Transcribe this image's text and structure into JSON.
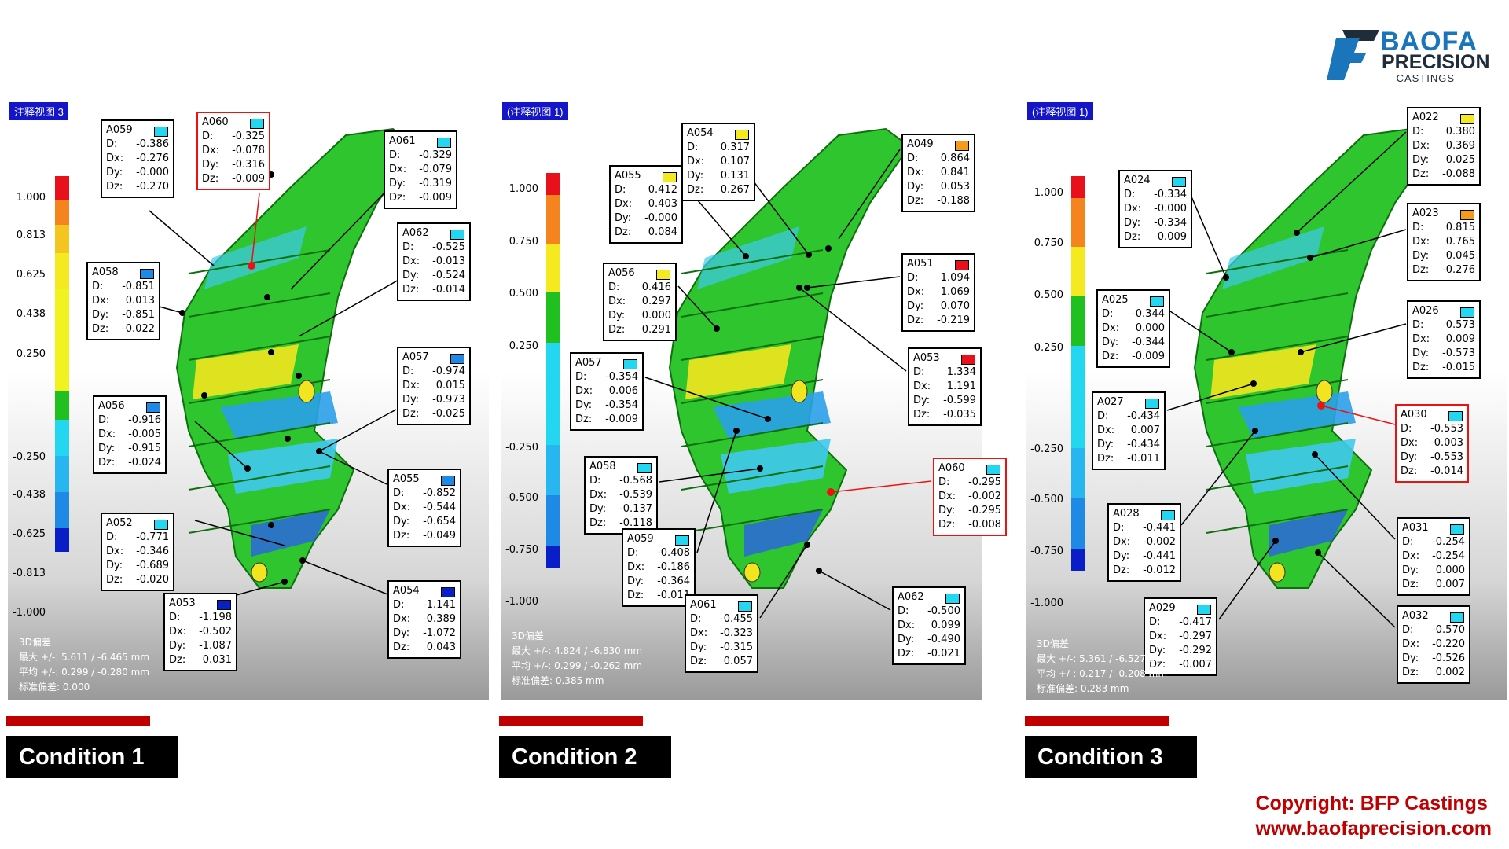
{
  "brand": {
    "name_line1": "BAOFA",
    "name_line2": "PRECISION",
    "name_line3": "CASTINGS",
    "colors": {
      "blue": "#1b75bb",
      "dark": "#1f2c3a"
    }
  },
  "copyright": {
    "line1": "Copyright: BFP Castings",
    "line2": "www.baofaprecision.com",
    "color": "#c00000"
  },
  "panels": [
    {
      "title": "注释视图 3",
      "condition_label": "Condition 1",
      "scale_labels": [
        "1.000",
        "0.813",
        "0.625",
        "0.438",
        "0.250",
        "-0.250",
        "-0.438",
        "-0.625",
        "-0.813",
        "-1.000"
      ],
      "stats": [
        "3D偏差",
        "最大 +/-: 5.611 / -6.465 mm",
        "平均 +/-: 0.299 / -0.280 mm",
        "标准偏差: 0.000"
      ],
      "annotations": [
        {
          "id": "A059",
          "D": "-0.386",
          "Dx": "-0.276",
          "Dy": "-0.000",
          "Dz": "-0.270",
          "swatch": "#23d7f0"
        },
        {
          "id": "A060",
          "D": "-0.325",
          "Dx": "-0.078",
          "Dy": "-0.316",
          "Dz": "-0.009",
          "swatch": "#23d7f0"
        },
        {
          "id": "A061",
          "D": "-0.329",
          "Dx": "-0.079",
          "Dy": "-0.319",
          "Dz": "-0.009",
          "swatch": "#23d7f0"
        },
        {
          "id": "A062",
          "D": "-0.525",
          "Dx": "-0.013",
          "Dy": "-0.524",
          "Dz": "-0.014",
          "swatch": "#23d7f0"
        },
        {
          "id": "A058",
          "D": "-0.851",
          "Dx": "0.013",
          "Dy": "-0.851",
          "Dz": "-0.022",
          "swatch": "#1f8ae6"
        },
        {
          "id": "A057",
          "D": "-0.974",
          "Dx": "0.015",
          "Dy": "-0.973",
          "Dz": "-0.025",
          "swatch": "#1f8ae6"
        },
        {
          "id": "A056",
          "D": "-0.916",
          "Dx": "-0.005",
          "Dy": "-0.915",
          "Dz": "-0.024",
          "swatch": "#1f8ae6"
        },
        {
          "id": "A055",
          "D": "-0.852",
          "Dx": "-0.544",
          "Dy": "-0.654",
          "Dz": "-0.049",
          "swatch": "#1f8ae6"
        },
        {
          "id": "A052",
          "D": "-0.771",
          "Dx": "-0.346",
          "Dy": "-0.689",
          "Dz": "-0.020",
          "swatch": "#23d7f0"
        },
        {
          "id": "A053",
          "D": "-1.198",
          "Dx": "-0.502",
          "Dy": "-1.087",
          "Dz": "0.031",
          "swatch": "#0a1ec8"
        },
        {
          "id": "A054",
          "D": "-1.141",
          "Dx": "-0.389",
          "Dy": "-1.072",
          "Dz": "0.043",
          "swatch": "#0a1ec8"
        }
      ]
    },
    {
      "title": "(注释视图 1)",
      "condition_label": "Condition 2",
      "scale_labels": [
        "1.000",
        "0.750",
        "0.500",
        "0.250",
        "-0.250",
        "-0.500",
        "-0.750",
        "-1.000"
      ],
      "stats": [
        "3D偏差",
        "最大 +/-: 4.824 / -6.830 mm",
        "平均 +/-: 0.299 / -0.262 mm",
        "标准偏差: 0.385 mm"
      ],
      "annotations": [
        {
          "id": "A054",
          "D": "0.317",
          "Dx": "0.107",
          "Dy": "0.131",
          "Dz": "0.267",
          "swatch": "#f5ea20"
        },
        {
          "id": "A049",
          "D": "0.864",
          "Dx": "0.841",
          "Dy": "0.053",
          "Dz": "-0.188",
          "swatch": "#f59a1a"
        },
        {
          "id": "A055",
          "D": "0.412",
          "Dx": "0.403",
          "Dy": "-0.000",
          "Dz": "0.084",
          "swatch": "#f5ea20"
        },
        {
          "id": "A051",
          "D": "1.094",
          "Dx": "1.069",
          "Dy": "0.070",
          "Dz": "-0.219",
          "swatch": "#e8101a"
        },
        {
          "id": "A056",
          "D": "0.416",
          "Dx": "0.297",
          "Dy": "0.000",
          "Dz": "0.291",
          "swatch": "#f5ea20"
        },
        {
          "id": "A053",
          "D": "1.334",
          "Dx": "1.191",
          "Dy": "-0.599",
          "Dz": "-0.035",
          "swatch": "#e8101a"
        },
        {
          "id": "A057",
          "D": "-0.354",
          "Dx": "0.006",
          "Dy": "-0.354",
          "Dz": "-0.009",
          "swatch": "#23d7f0"
        },
        {
          "id": "A058",
          "D": "-0.568",
          "Dx": "-0.539",
          "Dy": "-0.137",
          "Dz": "-0.118",
          "swatch": "#23d7f0"
        },
        {
          "id": "A060",
          "D": "-0.295",
          "Dx": "-0.002",
          "Dy": "-0.295",
          "Dz": "-0.008",
          "swatch": "#23d7f0"
        },
        {
          "id": "A059",
          "D": "-0.408",
          "Dx": "-0.186",
          "Dy": "-0.364",
          "Dz": "-0.011",
          "swatch": "#23d7f0"
        },
        {
          "id": "A061",
          "D": "-0.455",
          "Dx": "-0.323",
          "Dy": "-0.315",
          "Dz": "0.057",
          "swatch": "#23d7f0"
        },
        {
          "id": "A062",
          "D": "-0.500",
          "Dx": "0.099",
          "Dy": "-0.490",
          "Dz": "-0.021",
          "swatch": "#23d7f0"
        }
      ]
    },
    {
      "title": "(注释视图 1)",
      "condition_label": "Condition 3",
      "scale_labels": [
        "1.000",
        "0.750",
        "0.500",
        "0.250",
        "-0.250",
        "-0.500",
        "-0.750",
        "-1.000"
      ],
      "stats": [
        "3D偏差",
        "最大 +/-: 5.361 / -6.527 mm",
        "平均 +/-: 0.217 / -0.208 mm",
        "标准偏差: 0.283 mm"
      ],
      "annotations": [
        {
          "id": "A022",
          "D": "0.380",
          "Dx": "0.369",
          "Dy": "0.025",
          "Dz": "-0.088",
          "swatch": "#f5ea20"
        },
        {
          "id": "A024",
          "D": "-0.334",
          "Dx": "-0.000",
          "Dy": "-0.334",
          "Dz": "-0.009",
          "swatch": "#23d7f0"
        },
        {
          "id": "A023",
          "D": "0.815",
          "Dx": "0.765",
          "Dy": "0.045",
          "Dz": "-0.276",
          "swatch": "#f59a1a"
        },
        {
          "id": "A025",
          "D": "-0.344",
          "Dx": "0.000",
          "Dy": "-0.344",
          "Dz": "-0.009",
          "swatch": "#23d7f0"
        },
        {
          "id": "A026",
          "D": "-0.573",
          "Dx": "0.009",
          "Dy": "-0.573",
          "Dz": "-0.015",
          "swatch": "#23d7f0"
        },
        {
          "id": "A027",
          "D": "-0.434",
          "Dx": "0.007",
          "Dy": "-0.434",
          "Dz": "-0.011",
          "swatch": "#23d7f0"
        },
        {
          "id": "A030",
          "D": "-0.553",
          "Dx": "-0.003",
          "Dy": "-0.553",
          "Dz": "-0.014",
          "swatch": "#23d7f0"
        },
        {
          "id": "A028",
          "D": "-0.441",
          "Dx": "-0.002",
          "Dy": "-0.441",
          "Dz": "-0.012",
          "swatch": "#23d7f0"
        },
        {
          "id": "A031",
          "D": "-0.254",
          "Dx": "-0.254",
          "Dy": "0.000",
          "Dz": "0.007",
          "swatch": "#23d7f0"
        },
        {
          "id": "A029",
          "D": "-0.417",
          "Dx": "-0.297",
          "Dy": "-0.292",
          "Dz": "-0.007",
          "swatch": "#23d7f0"
        },
        {
          "id": "A032",
          "D": "-0.570",
          "Dx": "-0.220",
          "Dy": "-0.526",
          "Dz": "0.002",
          "swatch": "#23d7f0"
        }
      ]
    }
  ]
}
